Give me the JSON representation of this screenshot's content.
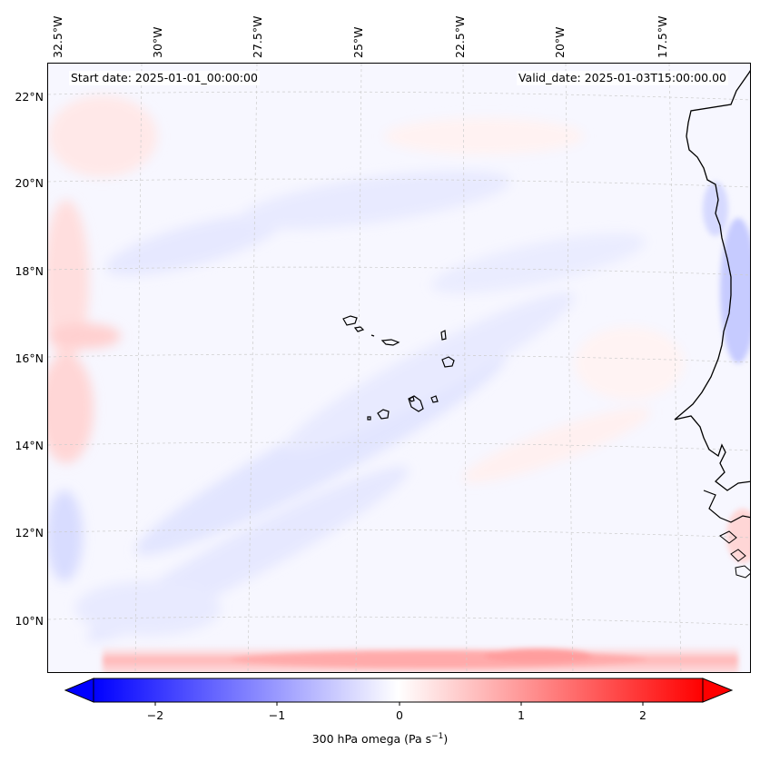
{
  "header": {
    "start_date": "Start date: 2025-01-01_00:00:00",
    "valid_date": "Valid_date: 2025-01-03T15:00:00.00"
  },
  "axes": {
    "lon_labels": [
      "32.5°W",
      "30°W",
      "27.5°W",
      "25°W",
      "22.5°W",
      "20°W",
      "17.5°W"
    ],
    "lat_labels": [
      "22°N",
      "20°N",
      "18°N",
      "16°N",
      "14°N",
      "12°N",
      "10°N"
    ],
    "gridlines": true,
    "gridline_style": "dashed-light-gray"
  },
  "map": {
    "field": "300 hPa omega",
    "extent_lon": [
      -32.8,
      -15.8
    ],
    "extent_lat": [
      8.9,
      22.8
    ],
    "features": [
      "Cape Verde islands",
      "West African coastline (Mauritania, Senegal, Guinea-Bissau)"
    ],
    "notable_values": [
      {
        "description": "strong positive band along southern edge",
        "value_range": "0.5 to 1.0"
      },
      {
        "description": "negative band near coast around 18-20N",
        "value_range": "-0.5 to -0.8"
      },
      {
        "description": "weak negative diagonal bands SW to NE",
        "value_range": "-0.2 to -0.4"
      }
    ]
  },
  "colorbar": {
    "label": "300 hPa omega (Pa s",
    "label_exponent": "−1",
    "label_close": ")",
    "ticks": [
      "−2",
      "−1",
      "0",
      "1",
      "2"
    ],
    "tick_values": [
      -2,
      -1,
      0,
      1,
      2
    ],
    "range": [
      -2.5,
      2.5
    ],
    "extend": "both",
    "colormap": "bwr",
    "colors": {
      "negative": "#0000ff",
      "zero": "#ffffff",
      "positive": "#ff0000"
    }
  }
}
